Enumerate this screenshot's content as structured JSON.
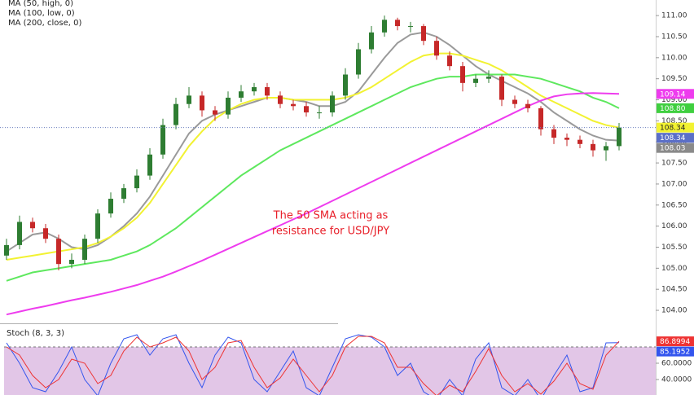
{
  "chart_data": [
    {
      "type": "candlestick",
      "open": [
        105.3,
        105.55,
        106.1,
        105.95,
        105.7,
        105.1,
        105.2,
        105.7,
        106.3,
        106.65,
        106.9,
        107.2,
        107.7,
        108.4,
        108.9,
        109.1,
        108.75,
        108.65,
        109.05,
        109.2,
        109.3,
        109.1,
        108.9,
        108.85,
        108.7,
        108.7,
        109.1,
        109.6,
        110.2,
        110.6,
        110.9,
        110.75,
        110.75,
        110.4,
        110.05,
        109.8,
        109.4,
        109.5,
        109.55,
        109.0,
        108.9,
        108.8,
        108.3,
        108.1,
        108.05,
        107.95,
        107.8,
        107.9
      ],
      "high": [
        105.7,
        106.25,
        106.2,
        106.05,
        105.8,
        105.35,
        105.8,
        106.4,
        106.8,
        107.0,
        107.35,
        107.85,
        108.55,
        109.05,
        109.3,
        109.2,
        108.85,
        109.2,
        109.35,
        109.4,
        109.4,
        109.2,
        109.0,
        108.95,
        108.85,
        109.2,
        109.75,
        110.35,
        110.75,
        111.0,
        110.95,
        110.85,
        110.8,
        110.5,
        110.15,
        109.9,
        109.6,
        109.7,
        109.6,
        109.1,
        109.0,
        108.85,
        108.4,
        108.2,
        108.15,
        108.05,
        108.0,
        108.45
      ],
      "low": [
        105.2,
        105.45,
        105.85,
        105.6,
        104.95,
        105.0,
        105.1,
        105.6,
        106.2,
        106.55,
        106.8,
        107.1,
        107.6,
        108.3,
        108.8,
        108.6,
        108.5,
        108.55,
        108.95,
        109.1,
        109.0,
        108.8,
        108.75,
        108.6,
        108.55,
        108.6,
        109.0,
        109.5,
        110.1,
        110.5,
        110.65,
        110.6,
        110.3,
        109.95,
        109.7,
        109.2,
        109.3,
        109.4,
        108.85,
        108.8,
        108.7,
        108.15,
        107.95,
        107.9,
        107.85,
        107.65,
        107.55,
        107.8
      ],
      "close": [
        105.55,
        106.1,
        105.95,
        105.7,
        105.1,
        105.2,
        105.7,
        106.3,
        106.65,
        106.9,
        107.2,
        107.7,
        108.4,
        108.9,
        109.1,
        108.75,
        108.65,
        109.05,
        109.2,
        109.3,
        109.1,
        108.9,
        108.85,
        108.7,
        108.7,
        109.1,
        109.6,
        110.2,
        110.6,
        110.9,
        110.75,
        110.75,
        110.4,
        110.05,
        109.8,
        109.4,
        109.5,
        109.55,
        109.0,
        108.9,
        108.8,
        108.3,
        108.1,
        108.05,
        107.95,
        107.8,
        107.9,
        108.34
      ],
      "up_color": "#2e7d32",
      "down_color": "#c62828",
      "series": [
        {
          "color": "#9a9a9a",
          "values": [
            105.4,
            105.6,
            105.8,
            105.85,
            105.7,
            105.5,
            105.45,
            105.55,
            105.75,
            106.0,
            106.3,
            106.7,
            107.2,
            107.7,
            108.2,
            108.5,
            108.65,
            108.75,
            108.85,
            108.95,
            109.05,
            109.05,
            109.0,
            108.95,
            108.85,
            108.85,
            108.95,
            109.2,
            109.6,
            110.0,
            110.35,
            110.55,
            110.6,
            110.5,
            110.3,
            110.05,
            109.8,
            109.6,
            109.45,
            109.3,
            109.15,
            108.95,
            108.7,
            108.5,
            108.3,
            108.15,
            108.05,
            108.03
          ]
        },
        {
          "name": "MA (50, high, 0)",
          "color": "#f2f232",
          "values": [
            105.2,
            105.25,
            105.3,
            105.35,
            105.4,
            105.45,
            105.5,
            105.6,
            105.75,
            105.95,
            106.2,
            106.55,
            107.0,
            107.45,
            107.9,
            108.25,
            108.55,
            108.75,
            108.9,
            109.0,
            109.05,
            109.05,
            109.0,
            109.0,
            109.0,
            109.0,
            109.05,
            109.15,
            109.3,
            109.5,
            109.7,
            109.9,
            110.05,
            110.1,
            110.1,
            110.05,
            109.95,
            109.85,
            109.7,
            109.5,
            109.3,
            109.1,
            108.95,
            108.8,
            108.65,
            108.5,
            108.4,
            108.34
          ]
        },
        {
          "name": "MA (100, low, 0)",
          "color": "#5ee85e",
          "values": [
            104.7,
            104.8,
            104.9,
            104.95,
            105.0,
            105.05,
            105.1,
            105.15,
            105.2,
            105.3,
            105.4,
            105.55,
            105.75,
            105.95,
            106.2,
            106.45,
            106.7,
            106.95,
            107.2,
            107.4,
            107.6,
            107.8,
            107.95,
            108.1,
            108.25,
            108.4,
            108.55,
            108.7,
            108.85,
            109.0,
            109.15,
            109.3,
            109.4,
            109.5,
            109.55,
            109.55,
            109.6,
            109.6,
            109.6,
            109.6,
            109.55,
            109.5,
            109.4,
            109.3,
            109.2,
            109.05,
            108.95,
            108.8
          ]
        },
        {
          "name": "MA (200, close, 0)",
          "color": "#ee3cee",
          "values": [
            103.9,
            103.97,
            104.04,
            104.1,
            104.17,
            104.24,
            104.3,
            104.37,
            104.44,
            104.52,
            104.6,
            104.7,
            104.8,
            104.92,
            105.05,
            105.18,
            105.32,
            105.46,
            105.6,
            105.74,
            105.88,
            106.02,
            106.16,
            106.3,
            106.45,
            106.6,
            106.75,
            106.9,
            107.05,
            107.2,
            107.35,
            107.5,
            107.65,
            107.8,
            107.95,
            108.1,
            108.25,
            108.4,
            108.55,
            108.7,
            108.85,
            108.98,
            109.08,
            109.13,
            109.15,
            109.16,
            109.15,
            109.14
          ]
        }
      ],
      "ylim": [
        103.73,
        111.37
      ],
      "yticks": [
        {
          "value": 111,
          "label": "111.00"
        },
        {
          "value": 110.5,
          "label": "110.50"
        },
        {
          "value": 110,
          "label": "110.00"
        },
        {
          "value": 109.5,
          "label": "109.50"
        },
        {
          "value": 109,
          "label": "109.00"
        },
        {
          "value": 108.5,
          "label": "108.50"
        },
        {
          "value": 108,
          "label": "108.00"
        },
        {
          "value": 107.5,
          "label": "107.50"
        },
        {
          "value": 107,
          "label": "107.00"
        },
        {
          "value": 106.5,
          "label": "106.50"
        },
        {
          "value": 106,
          "label": "106.00"
        },
        {
          "value": 105.5,
          "label": "105.50"
        },
        {
          "value": 105,
          "label": "105.00"
        },
        {
          "value": 104.5,
          "label": "104.50"
        },
        {
          "value": 104,
          "label": "104.00"
        }
      ],
      "price_line": 108.34,
      "price_tags": [
        {
          "value": 109.14,
          "label": "109.14",
          "color": "#ee3cee"
        },
        {
          "value": 108.8,
          "label": "108.80",
          "color": "#3fcf3f"
        },
        {
          "value": 108.34,
          "label": "108.34",
          "color": "#f2f232"
        },
        {
          "value": 108.34,
          "label": "108.34",
          "color": "#5b6fc7"
        },
        {
          "value": 108.03,
          "label": "108.03",
          "color": "#8a8a8a"
        }
      ],
      "annotation": [
        "The 50 SMA acting as",
        "resistance for USD/JPY"
      ],
      "annotation_color": "#e8202a"
    },
    {
      "type": "line",
      "title": "Stoch (8, 3, 3)",
      "series": [
        {
          "color": "#3355ee",
          "values": [
            85,
            60,
            30,
            25,
            50,
            80,
            40,
            20,
            60,
            90,
            95,
            70,
            90,
            95,
            60,
            30,
            70,
            92,
            85,
            40,
            25,
            50,
            75,
            30,
            20,
            55,
            90,
            95,
            92,
            80,
            45,
            60,
            25,
            15,
            40,
            20,
            65,
            85,
            30,
            20,
            40,
            15,
            45,
            70,
            25,
            30,
            85,
            85.1952
          ]
        },
        {
          "color": "#ee3333",
          "values": [
            80,
            70,
            45,
            30,
            40,
            65,
            60,
            35,
            45,
            75,
            92,
            80,
            85,
            92,
            75,
            40,
            55,
            85,
            88,
            55,
            30,
            42,
            65,
            45,
            25,
            45,
            80,
            93,
            93,
            85,
            55,
            55,
            35,
            20,
            33,
            25,
            50,
            78,
            45,
            25,
            35,
            22,
            38,
            60,
            35,
            28,
            70,
            86.8994
          ]
        }
      ],
      "ylim": [
        21,
        106
      ],
      "yticks": [
        {
          "value": 60,
          "label": "60.0000"
        },
        {
          "value": 40,
          "label": "40.0000"
        }
      ],
      "levels": [
        20,
        80
      ],
      "band_color": "#e2c6e7",
      "price_tags": [
        {
          "value": 86.8994,
          "label": "86.8994",
          "color": "#ee3333"
        },
        {
          "value": 85.1952,
          "label": "85.1952",
          "color": "#3355ee"
        }
      ]
    }
  ]
}
